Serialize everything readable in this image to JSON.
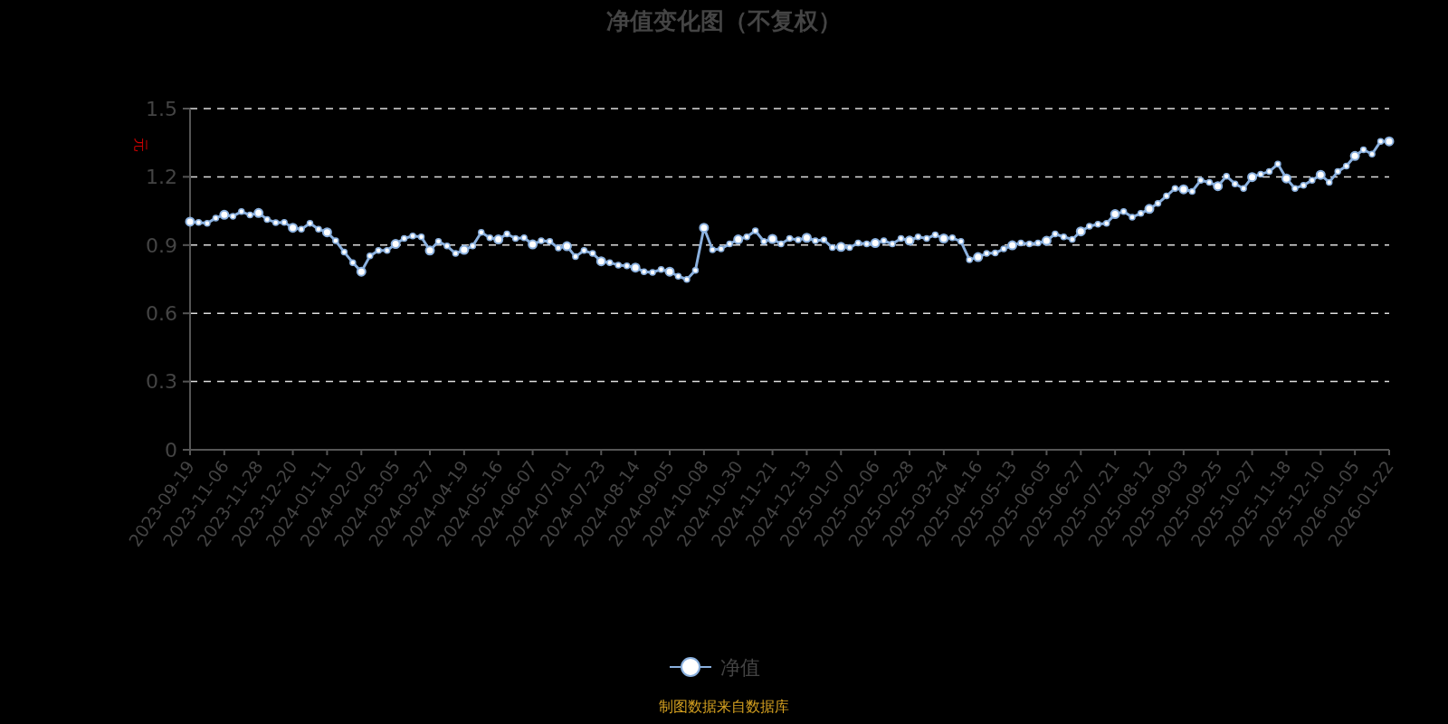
{
  "chart_data": {
    "type": "line",
    "title": "净值变化图（不复权）",
    "ylabel": "元",
    "categories": [
      "2023-09-19",
      null,
      null,
      null,
      "2023-11-06",
      null,
      null,
      null,
      "2023-11-28",
      null,
      null,
      null,
      "2023-12-20",
      null,
      null,
      null,
      "2024-01-11",
      null,
      null,
      null,
      "2024-02-02",
      null,
      null,
      null,
      "2024-03-05",
      null,
      null,
      null,
      "2024-03-27",
      null,
      null,
      null,
      "2024-04-19",
      null,
      null,
      null,
      "2024-05-16",
      null,
      null,
      null,
      "2024-06-07",
      null,
      null,
      null,
      "2024-07-01",
      null,
      null,
      null,
      "2024-07-23",
      null,
      null,
      null,
      "2024-08-14",
      null,
      null,
      null,
      "2024-09-05",
      null,
      null,
      null,
      "2024-10-08",
      null,
      null,
      null,
      "2024-10-30",
      null,
      null,
      null,
      "2024-11-21",
      null,
      null,
      null,
      "2024-12-13",
      null,
      null,
      null,
      "2025-01-07",
      null,
      null,
      null,
      "2025-02-06",
      null,
      null,
      null,
      "2025-02-28",
      null,
      null,
      null,
      "2025-03-24",
      null,
      null,
      null,
      "2025-04-16",
      null,
      null,
      null,
      "2025-05-13",
      null,
      null,
      null,
      "2025-06-05",
      null,
      null,
      null,
      "2025-06-27",
      null,
      null,
      null,
      "2025-07-21",
      null,
      null,
      null,
      "2025-08-12",
      null,
      null,
      null,
      "2025-09-03",
      null,
      null,
      null,
      "2025-09-25",
      null,
      null,
      null,
      "2025-10-27",
      null,
      null,
      null,
      "2025-11-18",
      null,
      null,
      null,
      "2025-12-10",
      null,
      null,
      null,
      "2026-01-05",
      null,
      null,
      null,
      "2026-01-22"
    ],
    "series": [
      {
        "name": "净值",
        "color": "#8ab0de",
        "values": [
          1.003,
          1.0,
          0.996,
          1.019,
          1.033,
          1.027,
          1.047,
          1.032,
          1.041,
          1.013,
          0.999,
          1.0,
          0.976,
          0.97,
          0.996,
          0.97,
          0.956,
          0.919,
          0.869,
          0.823,
          0.783,
          0.852,
          0.876,
          0.876,
          0.905,
          0.929,
          0.94,
          0.936,
          0.876,
          0.916,
          0.896,
          0.863,
          0.879,
          0.896,
          0.956,
          0.932,
          0.925,
          0.949,
          0.929,
          0.932,
          0.903,
          0.919,
          0.916,
          0.887,
          0.895,
          0.849,
          0.876,
          0.863,
          0.829,
          0.823,
          0.812,
          0.809,
          0.801,
          0.783,
          0.78,
          0.793,
          0.783,
          0.763,
          0.749,
          0.789,
          0.976,
          0.879,
          0.883,
          0.905,
          0.925,
          0.936,
          0.963,
          0.916,
          0.927,
          0.905,
          0.929,
          0.923,
          0.932,
          0.919,
          0.923,
          0.889,
          0.892,
          0.889,
          0.909,
          0.905,
          0.909,
          0.919,
          0.905,
          0.929,
          0.92,
          0.936,
          0.929,
          0.945,
          0.929,
          0.932,
          0.916,
          0.836,
          0.847,
          0.863,
          0.865,
          0.883,
          0.899,
          0.909,
          0.905,
          0.909,
          0.919,
          0.949,
          0.936,
          0.925,
          0.96,
          0.983,
          0.992,
          0.996,
          1.036,
          1.047,
          1.023,
          1.039,
          1.059,
          1.083,
          1.116,
          1.149,
          1.145,
          1.136,
          1.185,
          1.176,
          1.159,
          1.203,
          1.169,
          1.149,
          1.199,
          1.212,
          1.223,
          1.256,
          1.193,
          1.149,
          1.163,
          1.185,
          1.209,
          1.176,
          1.223,
          1.247,
          1.292,
          1.319,
          1.3,
          1.356,
          1.356
        ]
      }
    ],
    "ylim": [
      0,
      1.5
    ],
    "yticks": [
      0,
      0.3,
      0.6,
      0.9,
      1.2,
      1.5
    ],
    "grid": "y",
    "legend": "bottom",
    "marker": "circle",
    "line_style": "solid",
    "annotations": [
      "制图数据来自数据库"
    ]
  }
}
